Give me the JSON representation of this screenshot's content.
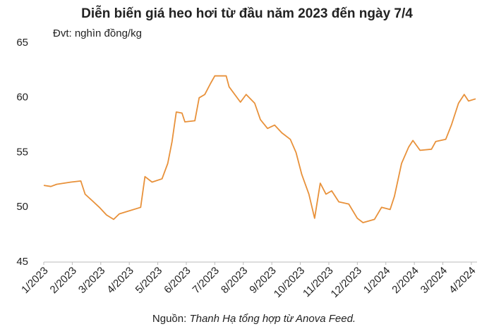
{
  "chart_data": {
    "type": "line",
    "title": "Diễn biến giá heo hơi từ đầu năm 2023 đến ngày 7/4",
    "subtitle": "Đvt: nghìn đồng/kg",
    "source_label": "Nguồn:",
    "source": "Thanh Hạ tổng hợp từ Anova Feed.",
    "x": [
      0,
      0.25,
      0.45,
      0.95,
      1.3,
      1.45,
      1.7,
      1.95,
      2.2,
      2.45,
      2.65,
      2.9,
      3.4,
      3.55,
      3.8,
      4.15,
      4.35,
      4.5,
      4.65,
      4.85,
      4.95,
      5.3,
      5.45,
      5.65,
      5.85,
      6.0,
      6.4,
      6.5,
      6.9,
      7.1,
      7.4,
      7.6,
      7.85,
      8.1,
      8.35,
      8.65,
      8.85,
      9.05,
      9.3,
      9.5,
      9.7,
      9.9,
      10.1,
      10.35,
      10.7,
      11.0,
      11.2,
      11.6,
      11.85,
      12.15,
      12.3,
      12.55,
      12.8,
      12.95,
      13.2,
      13.6,
      13.75,
      14.1,
      14.3,
      14.55,
      14.75,
      14.9,
      15.15
    ],
    "series": [
      {
        "name": "Giá heo hơi",
        "color": "#e8913a",
        "values": [
          52.0,
          51.9,
          52.1,
          52.3,
          52.4,
          51.2,
          50.6,
          50.0,
          49.3,
          48.9,
          49.4,
          49.6,
          50.0,
          52.8,
          52.3,
          52.6,
          54.0,
          56.0,
          58.7,
          58.6,
          57.8,
          57.9,
          60.0,
          60.3,
          61.3,
          62.0,
          62.0,
          61.0,
          59.6,
          60.3,
          59.5,
          58.0,
          57.2,
          57.5,
          56.8,
          56.2,
          55.0,
          53.0,
          51.2,
          49.0,
          52.2,
          51.2,
          51.5,
          50.5,
          50.3,
          49.0,
          48.6,
          48.9,
          50.0,
          49.8,
          51.0,
          54.0,
          55.5,
          56.1,
          55.2,
          55.3,
          56.0,
          56.2,
          57.5,
          59.5,
          60.3,
          59.7,
          59.9
        ]
      }
    ],
    "xlim": [
      0,
      15.2
    ],
    "xticks": [
      {
        "value": 0,
        "label": "1/2023"
      },
      {
        "value": 1,
        "label": "2/2023"
      },
      {
        "value": 2,
        "label": "3/2023"
      },
      {
        "value": 3,
        "label": "4/2023"
      },
      {
        "value": 4,
        "label": "5/2023"
      },
      {
        "value": 5,
        "label": "6/2023"
      },
      {
        "value": 6,
        "label": "7/2023"
      },
      {
        "value": 7,
        "label": "8/2023"
      },
      {
        "value": 8,
        "label": "9/2023"
      },
      {
        "value": 9,
        "label": "10/2023"
      },
      {
        "value": 10,
        "label": "11/2023"
      },
      {
        "value": 11,
        "label": "12/2023"
      },
      {
        "value": 12,
        "label": "1/2024"
      },
      {
        "value": 13,
        "label": "2/2024"
      },
      {
        "value": 14,
        "label": "3/2024"
      },
      {
        "value": 15,
        "label": "4/2024"
      }
    ],
    "ylim": [
      45,
      65
    ],
    "yticks": [
      45,
      50,
      55,
      60,
      65
    ],
    "grid": false
  }
}
